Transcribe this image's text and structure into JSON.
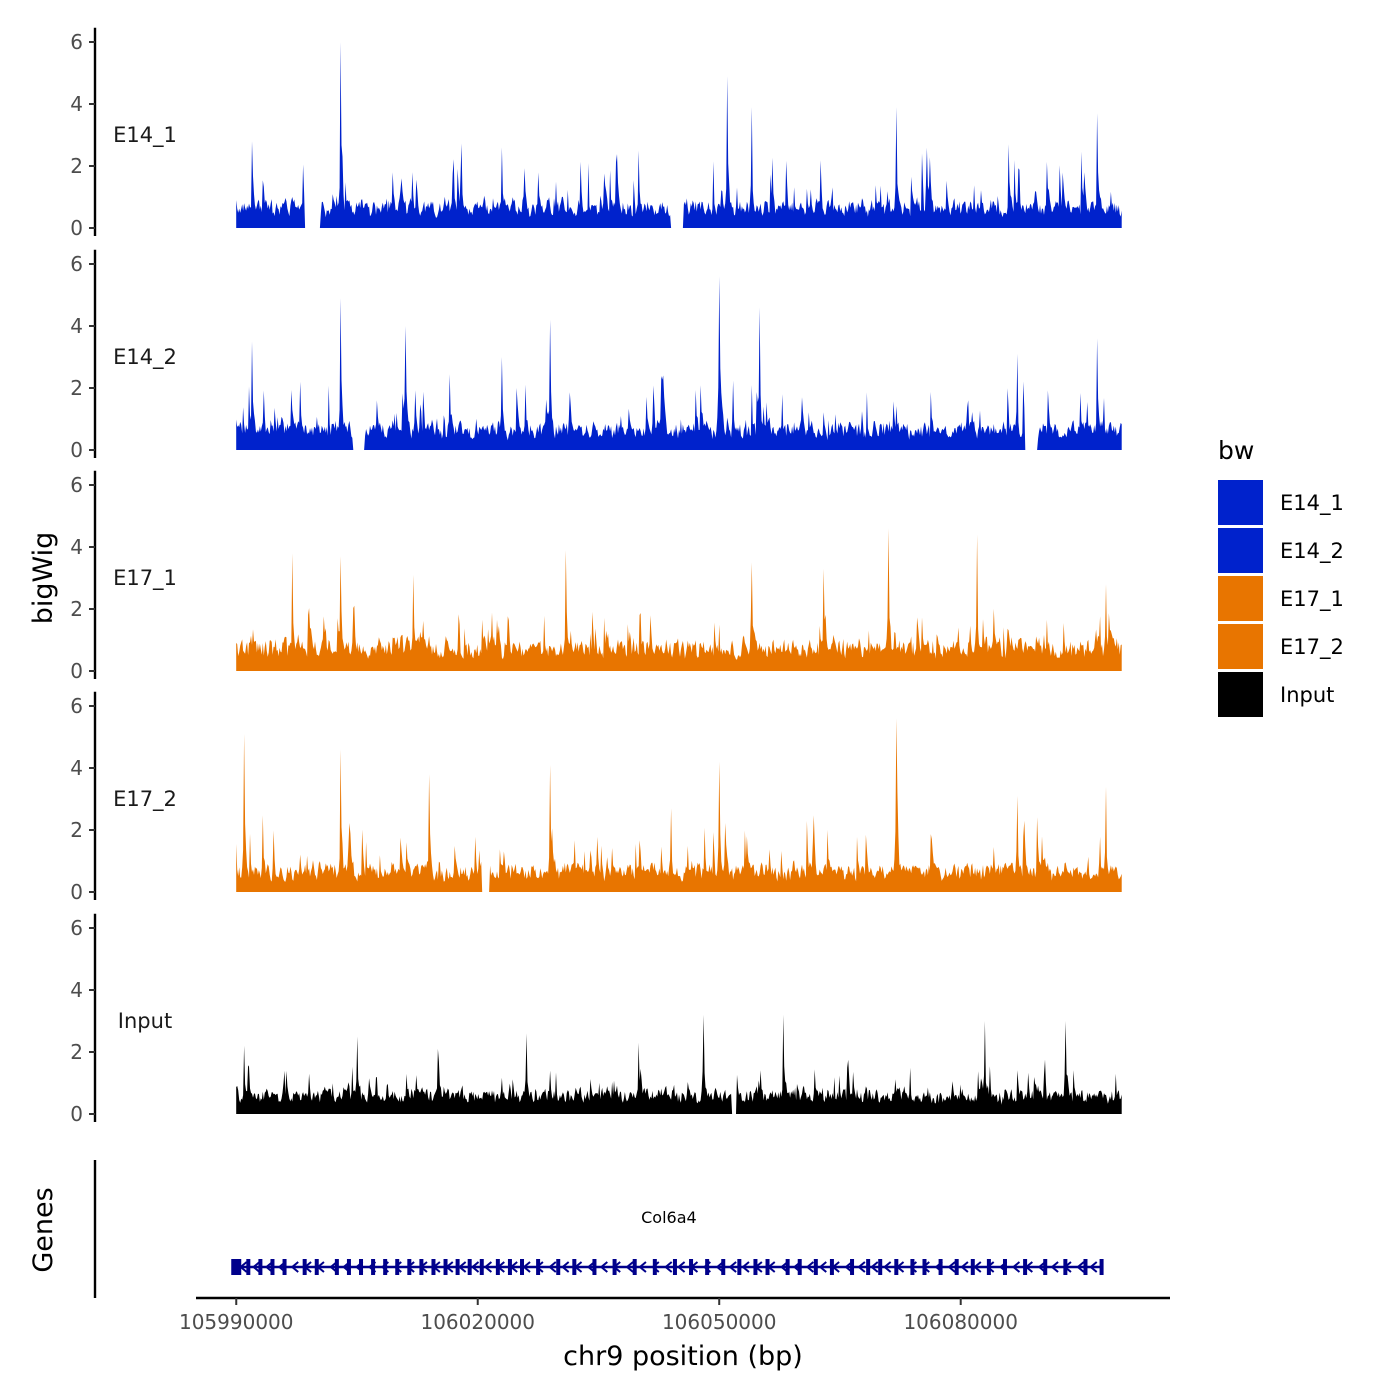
{
  "chart_data": {
    "type": "area",
    "ylabel": "bigWig",
    "xlabel": "chr9 position (bp)",
    "xlim": [
      105985000,
      106106000
    ],
    "x_start": 105990000,
    "x_end": 106100000,
    "x_ticks": [
      105990000,
      106020000,
      106050000,
      106080000
    ],
    "x_tick_labels": [
      "105990000",
      "106020000",
      "106050000",
      "106080000"
    ],
    "ylim": [
      0,
      6.2
    ],
    "y_ticks": [
      0,
      2,
      4,
      6
    ],
    "y_tick_labels": [
      "0",
      "2",
      "4",
      "6"
    ],
    "legend": {
      "title": "bw",
      "position": "right",
      "entries": [
        {
          "label": "E14_1",
          "color": "#0022cc"
        },
        {
          "label": "E14_2",
          "color": "#0022cc"
        },
        {
          "label": "E17_1",
          "color": "#e87500"
        },
        {
          "label": "E17_2",
          "color": "#e87500"
        },
        {
          "label": "Input",
          "color": "#000000"
        }
      ]
    },
    "series": [
      {
        "name": "E14_1",
        "color": "#0022cc",
        "baseline": 0.9,
        "peak_max": 6.0,
        "peaks": [
          [
            106003000,
            6.0
          ],
          [
            106051000,
            4.9
          ],
          [
            106054000,
            3.9
          ],
          [
            106072000,
            3.9
          ],
          [
            106097000,
            3.7
          ],
          [
            105992000,
            2.8
          ],
          [
            106086000,
            2.7
          ],
          [
            106040000,
            2.5
          ],
          [
            106023000,
            2.6
          ]
        ],
        "gaps": [
          [
            105998500,
            106000500
          ],
          [
            106044000,
            106045500
          ]
        ]
      },
      {
        "name": "E14_2",
        "color": "#0022cc",
        "baseline": 0.9,
        "peak_max": 5.6,
        "peaks": [
          [
            106003000,
            4.9
          ],
          [
            106050000,
            5.6
          ],
          [
            106055000,
            4.6
          ],
          [
            106029000,
            4.2
          ],
          [
            106011000,
            4.0
          ],
          [
            106023000,
            3.0
          ],
          [
            106097000,
            3.6
          ],
          [
            106087000,
            3.1
          ],
          [
            105992000,
            3.5
          ]
        ],
        "gaps": [
          [
            106088000,
            106089500
          ],
          [
            106004500,
            106006000
          ]
        ]
      },
      {
        "name": "E17_1",
        "color": "#e87500",
        "baseline": 1.0,
        "peak_max": 4.6,
        "peaks": [
          [
            106071000,
            4.6
          ],
          [
            106082000,
            4.4
          ],
          [
            106031000,
            3.9
          ],
          [
            106054000,
            3.5
          ],
          [
            105997000,
            3.8
          ],
          [
            106003000,
            3.7
          ],
          [
            106063000,
            3.3
          ],
          [
            106098000,
            2.8
          ],
          [
            106012000,
            3.1
          ]
        ],
        "gaps": []
      },
      {
        "name": "E17_2",
        "color": "#e87500",
        "baseline": 0.9,
        "peak_max": 5.6,
        "peaks": [
          [
            106072000,
            5.6
          ],
          [
            106003000,
            4.6
          ],
          [
            105991000,
            5.1
          ],
          [
            106050000,
            4.2
          ],
          [
            106014000,
            3.8
          ],
          [
            106029000,
            4.1
          ],
          [
            106098000,
            3.4
          ],
          [
            106087000,
            3.1
          ],
          [
            106044000,
            2.7
          ]
        ],
        "gaps": [
          [
            106020500,
            106021500
          ]
        ]
      },
      {
        "name": "Input",
        "color": "#000000",
        "baseline": 0.8,
        "peak_max": 3.2,
        "peaks": [
          [
            106058000,
            3.2
          ],
          [
            106048000,
            3.2
          ],
          [
            106083000,
            3.0
          ],
          [
            106093000,
            3.0
          ],
          [
            106005000,
            2.5
          ],
          [
            106026000,
            2.6
          ],
          [
            106040000,
            2.3
          ],
          [
            106015000,
            2.1
          ],
          [
            105991000,
            2.2
          ]
        ],
        "gaps": [
          [
            106051500,
            106052200
          ]
        ]
      }
    ],
    "genes": {
      "label": "Genes",
      "gene_name": "Col6a4",
      "color": "#00008b",
      "start": 105990000,
      "end": 106097500,
      "strand": "-",
      "exons": [
        105990000,
        105991500,
        105993000,
        105994500,
        105996000,
        105998500,
        106000000,
        106002500,
        106004000,
        106005500,
        106007000,
        106008500,
        106010000,
        106011500,
        106013000,
        106014500,
        106016000,
        106017500,
        106019000,
        106020500,
        106022500,
        106024000,
        106025500,
        106027500,
        106030000,
        106032000,
        106034500,
        106037000,
        106039500,
        106042000,
        106044500,
        106046500,
        106048500,
        106050500,
        106052500,
        106054500,
        106056000,
        106058500,
        106060000,
        106062000,
        106064000,
        106066500,
        106068500,
        106070000,
        106072000,
        106074000,
        106075500,
        106077500,
        106079500,
        106081500,
        106083500,
        106085500,
        106088000,
        106090500,
        106093000,
        106095500,
        106097500
      ]
    }
  }
}
